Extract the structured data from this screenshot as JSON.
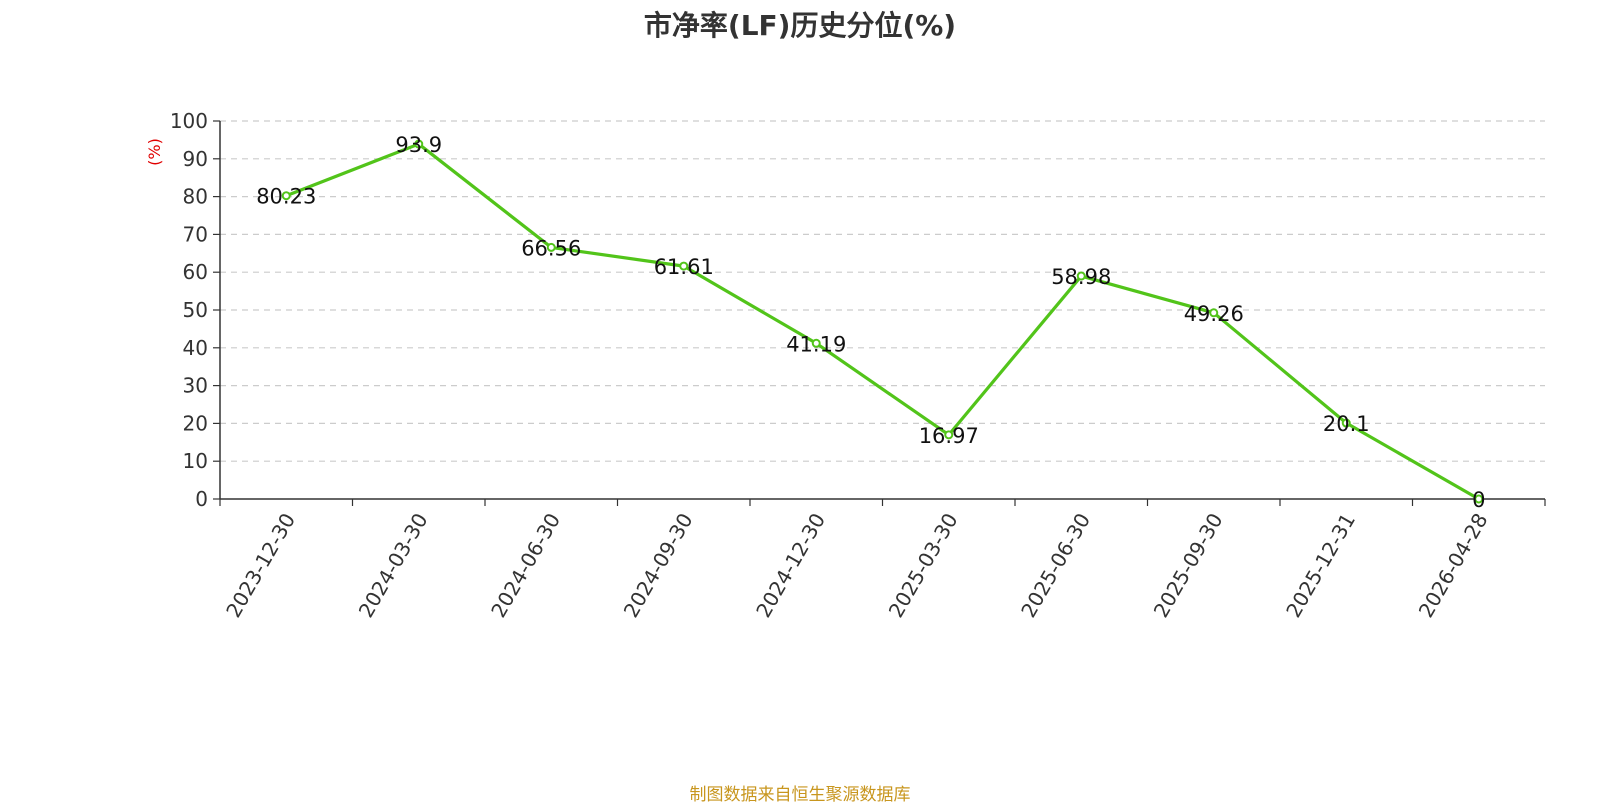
{
  "chart_data": {
    "type": "line",
    "title": "市净率(LF)历史分位(%)",
    "ylabel": "(%)",
    "xlabel": "",
    "ylim": [
      0,
      100
    ],
    "yticks": [
      0,
      10,
      20,
      30,
      40,
      50,
      60,
      70,
      80,
      90,
      100
    ],
    "grid": true,
    "categories": [
      "2023-12-30",
      "2024-03-30",
      "2024-06-30",
      "2024-09-30",
      "2024-12-30",
      "2025-03-30",
      "2025-06-30",
      "2025-09-30",
      "2025-12-31",
      "2026-04-28"
    ],
    "series": [
      {
        "values": [
          80.23,
          93.9,
          66.56,
          61.61,
          41.19,
          16.97,
          58.98,
          49.26,
          20.1,
          0
        ],
        "labels": [
          "80.23",
          "93.9",
          "66.56",
          "61.61",
          "41.19",
          "16.97",
          "58.98",
          "49.26",
          "20.1",
          "0"
        ],
        "color": "#52c41a"
      }
    ]
  },
  "source": "制图数据来自恒生聚源数据库"
}
